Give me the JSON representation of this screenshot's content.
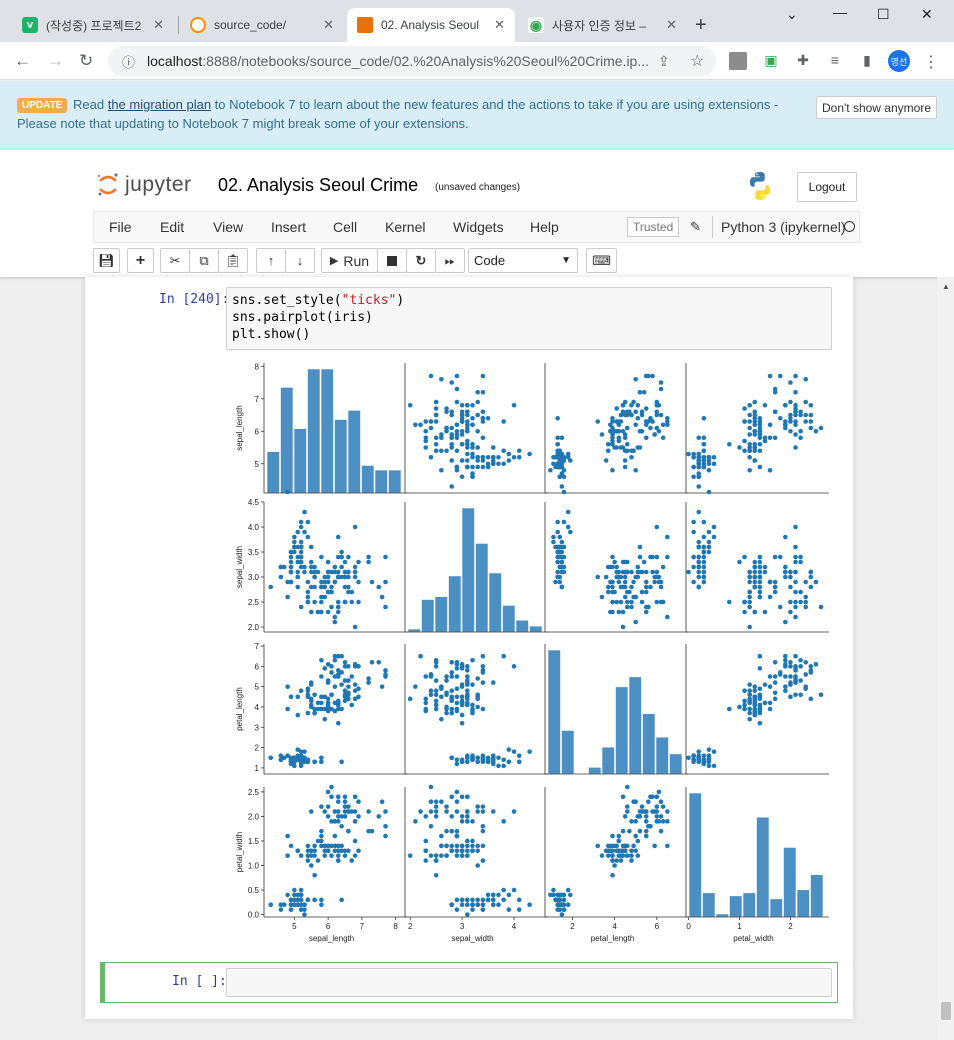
{
  "browser": {
    "tabs": [
      {
        "title": "(작성중) 프로젝트2",
        "fav_color": "#1fb26b",
        "fav_glyph": "v"
      },
      {
        "title": "source_code/",
        "fav_color": "#ff8c00",
        "fav_glyph": "c"
      },
      {
        "title": "02. Analysis Seoul",
        "fav_color": "#e8710a",
        "fav_glyph": "▤"
      },
      {
        "title": "사용자 인증 정보 –",
        "fav_color": "#34a853",
        "fav_glyph": "◉"
      }
    ],
    "new_tab": "+",
    "url_host": "localhost",
    "url_rest": ":8888/notebooks/source_code/02.%20Analysis%20Seoul%20Crime.ip...",
    "avatar": "영선"
  },
  "banner": {
    "badge": "UPDATE",
    "pre": "Read ",
    "link": "the migration plan",
    "post": " to Notebook 7 to learn about the new features and the actions to take if you are using extensions -",
    "line2": "Please note that updating to Notebook 7 might break some of your extensions.",
    "dismiss": "Don't show anymore"
  },
  "jupyter": {
    "wordmark": "jupyter",
    "title": "02. Analysis Seoul Crime",
    "save_status": "(unsaved changes)",
    "logout": "Logout",
    "menus": [
      "File",
      "Edit",
      "View",
      "Insert",
      "Cell",
      "Kernel",
      "Widgets",
      "Help"
    ],
    "trusted": "Trusted",
    "kernel": "Python 3 (ipykernel)",
    "run_label": "Run",
    "cell_type": "Code"
  },
  "cells": [
    {
      "prompt": "In [240]:",
      "code": [
        "sns.set_style(",
        "\"ticks\"",
        ")",
        "sns.pairplot(iris)",
        "plt.show()"
      ]
    },
    {
      "prompt": "In [ ]:"
    }
  ],
  "chart_data": {
    "type": "scatter",
    "variables": [
      "sepal_length",
      "sepal_width",
      "petal_length",
      "petal_width"
    ],
    "axis_ticks": {
      "sepal_length": [
        "5",
        "6",
        "7",
        "8"
      ],
      "sepal_width": [
        "2.0",
        "2.5",
        "3.0",
        "3.5",
        "4.0",
        "4.5"
      ],
      "petal_length": [
        "1",
        "2",
        "3",
        "4",
        "5",
        "6",
        "7"
      ],
      "petal_width": [
        "0.0",
        "0.5",
        "1.0",
        "1.5",
        "2.0",
        "2.5"
      ]
    },
    "bottom_ticks": {
      "sepal_length": [
        "5",
        "6",
        "7",
        "8"
      ],
      "sepal_width": [
        "2",
        "3",
        "4"
      ],
      "petal_length": [
        "2",
        "4",
        "6"
      ],
      "petal_width": [
        "0",
        "1",
        "2"
      ]
    },
    "histograms": {
      "sepal_length": {
        "range": [
          4.3,
          7.9
        ],
        "counts": [
          9,
          23,
          14,
          27,
          27,
          16,
          18,
          6,
          5,
          5
        ]
      },
      "sepal_width": {
        "range": [
          2.0,
          4.4
        ],
        "counts": [
          1,
          11,
          12,
          19,
          42,
          30,
          20,
          9,
          4,
          2
        ]
      },
      "petal_length": {
        "range": [
          1.0,
          6.9
        ],
        "counts": [
          37,
          13,
          0,
          2,
          8,
          26,
          29,
          18,
          11,
          6
        ]
      },
      "petal_width": {
        "range": [
          0.1,
          2.5
        ],
        "counts": [
          41,
          8,
          1,
          7,
          8,
          33,
          6,
          23,
          9,
          14
        ]
      }
    },
    "point_color": "#1f77b4",
    "hist_color": "#4c8fc2",
    "note": "scatter cells show the 150 iris samples (3 species clusters) plotted pairwise"
  }
}
